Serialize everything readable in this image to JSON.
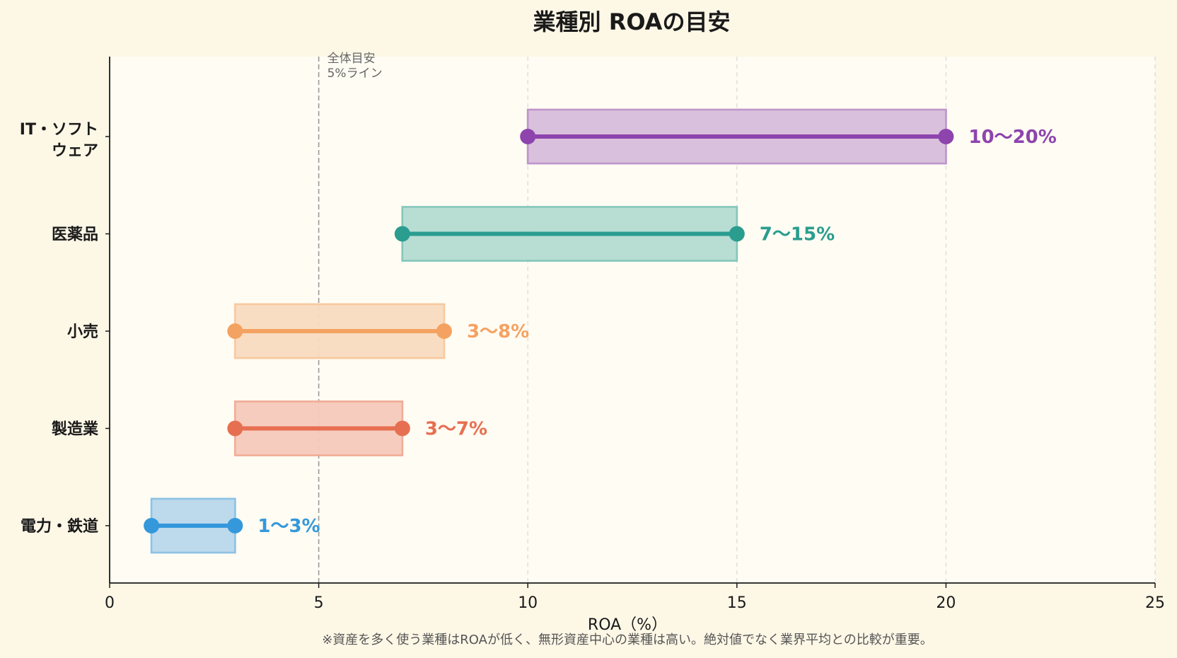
{
  "chart_data": {
    "type": "range-bar",
    "title": "業種別 ROAの目安",
    "xlabel": "ROA（%）",
    "ylabel": "",
    "xlim": [
      0,
      25
    ],
    "xticks": [
      0,
      5,
      10,
      15,
      20,
      25
    ],
    "grid": "vertical dashed",
    "reference_line": {
      "x": 5,
      "label_line1": "全体目安",
      "label_line2": "5%ライン"
    },
    "categories": [
      {
        "name_line1": "IT・ソフト",
        "name_line2": "ウェア",
        "min": 10,
        "max": 20,
        "label": "10〜20%",
        "color": "#8e44ad",
        "fill": "#d7bddb"
      },
      {
        "name_line1": "医薬品",
        "name_line2": "",
        "min": 7,
        "max": 15,
        "label": "7〜15%",
        "color": "#2a9d8f",
        "fill": "#b5dcd2"
      },
      {
        "name_line1": "小売",
        "name_line2": "",
        "min": 3,
        "max": 8,
        "label": "3〜8%",
        "color": "#f4a261",
        "fill": "#f9dcc0"
      },
      {
        "name_line1": "製造業",
        "name_line2": "",
        "min": 3,
        "max": 7,
        "label": "3〜7%",
        "color": "#e76f51",
        "fill": "#f6cabc"
      },
      {
        "name_line1": "電力・鉄道",
        "name_line2": "",
        "min": 1,
        "max": 3,
        "label": "1〜3%",
        "color": "#3498db",
        "fill": "#bad8ec"
      }
    ],
    "footnote": "※資産を多く使う業種はROAが低く、無形資産中心の業種は高い。絶対値でなく業界平均との比較が重要。"
  }
}
